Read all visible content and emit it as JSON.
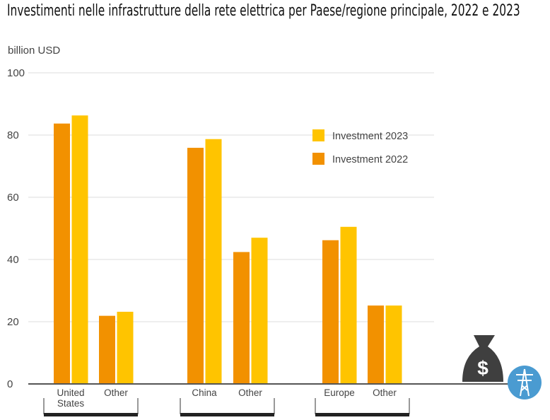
{
  "chart_data": {
    "type": "bar",
    "title": "Investimenti nelle infrastrutture della rete elettrica per Paese/regione principale, 2022 e 2023",
    "ylabel": "billion USD",
    "ylim": [
      0,
      100
    ],
    "yticks": [
      "0",
      "20",
      "40",
      "60",
      "80",
      "100"
    ],
    "categories": [
      "United States",
      "Other",
      "China",
      "Other",
      "Europe",
      "Other"
    ],
    "category_lines": [
      [
        "United",
        "States"
      ],
      [
        "Other"
      ],
      [
        "China"
      ],
      [
        "Other"
      ],
      [
        "Europe"
      ],
      [
        "Other"
      ]
    ],
    "series": [
      {
        "name": "Investment 2022",
        "color": "#F29100",
        "values": [
          83.7,
          21.9,
          75.9,
          42.4,
          46.2,
          25.2
        ]
      },
      {
        "name": "Investment 2023",
        "color": "#FFC400",
        "values": [
          86.3,
          23.2,
          78.7,
          47.0,
          50.5,
          25.2
        ]
      }
    ],
    "legend_position": "top-right",
    "grid": true
  }
}
